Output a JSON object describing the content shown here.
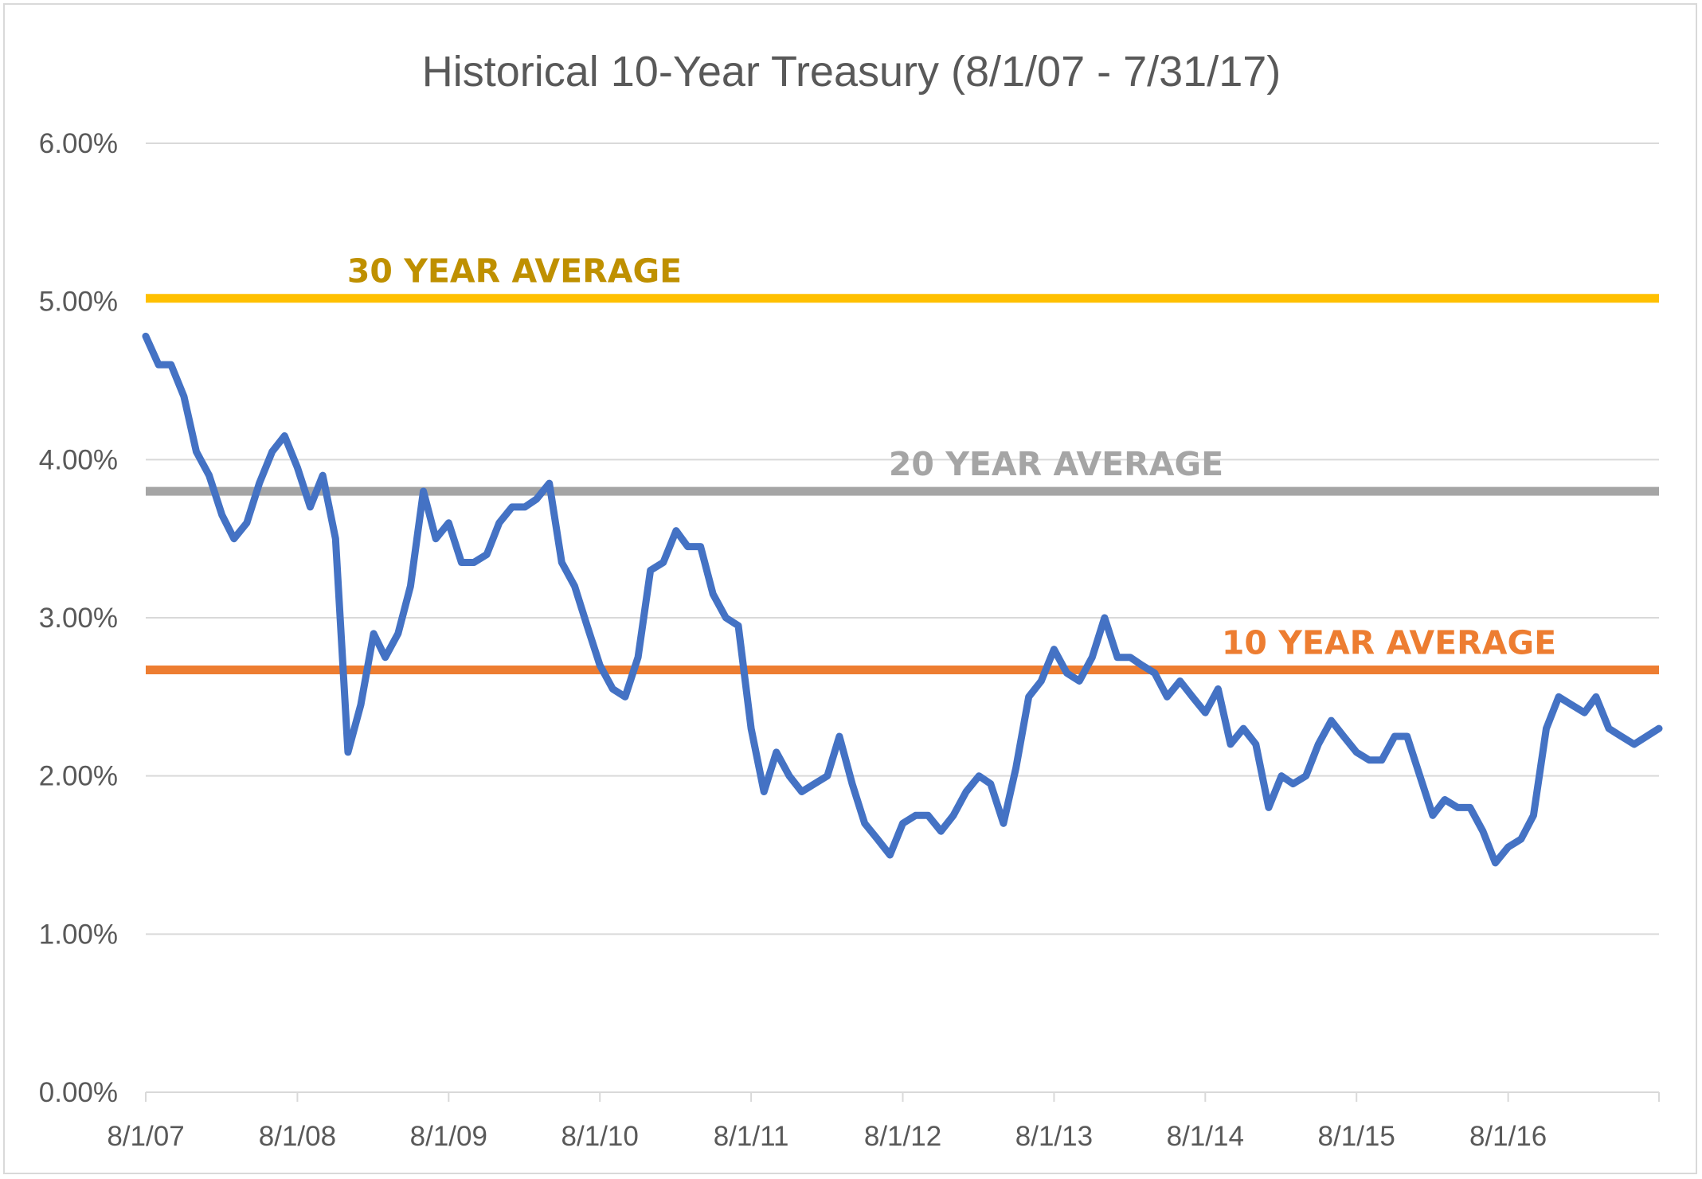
{
  "chart_data": {
    "type": "line",
    "title": "Historical 10-Year Treasury (8/1/07 - 7/31/17)",
    "xlabel": "",
    "ylabel": "",
    "x_ticks": [
      "8/1/07",
      "8/1/08",
      "8/1/09",
      "8/1/10",
      "8/1/11",
      "8/1/12",
      "8/1/13",
      "8/1/14",
      "8/1/15",
      "8/1/16"
    ],
    "y_ticks": [
      "0.00%",
      "1.00%",
      "2.00%",
      "3.00%",
      "4.00%",
      "5.00%",
      "6.00%"
    ],
    "ylim": [
      0,
      6
    ],
    "xlim": [
      "8/1/07",
      "7/31/17"
    ],
    "grid": "horizontal",
    "series": [
      {
        "color": "#4472c4",
        "points": [
          [
            "8/1/07",
            4.78
          ],
          [
            "9/1/07",
            4.6
          ],
          [
            "10/1/07",
            4.6
          ],
          [
            "11/1/07",
            4.4
          ],
          [
            "12/1/07",
            4.05
          ],
          [
            "1/1/08",
            3.9
          ],
          [
            "2/1/08",
            3.65
          ],
          [
            "3/1/08",
            3.5
          ],
          [
            "4/1/08",
            3.6
          ],
          [
            "5/1/08",
            3.85
          ],
          [
            "6/1/08",
            4.05
          ],
          [
            "7/1/08",
            4.15
          ],
          [
            "8/1/08",
            3.95
          ],
          [
            "9/1/08",
            3.7
          ],
          [
            "10/1/08",
            3.9
          ],
          [
            "11/1/08",
            3.5
          ],
          [
            "12/1/08",
            2.15
          ],
          [
            "1/1/09",
            2.45
          ],
          [
            "2/1/09",
            2.9
          ],
          [
            "3/1/09",
            2.75
          ],
          [
            "4/1/09",
            2.9
          ],
          [
            "5/1/09",
            3.2
          ],
          [
            "6/1/09",
            3.8
          ],
          [
            "7/1/09",
            3.5
          ],
          [
            "8/1/09",
            3.6
          ],
          [
            "9/1/09",
            3.35
          ],
          [
            "10/1/09",
            3.35
          ],
          [
            "11/1/09",
            3.4
          ],
          [
            "12/1/09",
            3.6
          ],
          [
            "1/1/10",
            3.7
          ],
          [
            "2/1/10",
            3.7
          ],
          [
            "3/1/10",
            3.75
          ],
          [
            "4/1/10",
            3.85
          ],
          [
            "5/1/10",
            3.35
          ],
          [
            "6/1/10",
            3.2
          ],
          [
            "7/1/10",
            2.95
          ],
          [
            "8/1/10",
            2.7
          ],
          [
            "9/1/10",
            2.55
          ],
          [
            "10/1/10",
            2.5
          ],
          [
            "11/1/10",
            2.75
          ],
          [
            "12/1/10",
            3.3
          ],
          [
            "1/1/11",
            3.35
          ],
          [
            "2/1/11",
            3.55
          ],
          [
            "3/1/11",
            3.45
          ],
          [
            "4/1/11",
            3.45
          ],
          [
            "5/1/11",
            3.15
          ],
          [
            "6/1/11",
            3.0
          ],
          [
            "7/1/11",
            2.95
          ],
          [
            "8/1/11",
            2.3
          ],
          [
            "9/1/11",
            1.9
          ],
          [
            "10/1/11",
            2.15
          ],
          [
            "11/1/11",
            2.0
          ],
          [
            "12/1/11",
            1.9
          ],
          [
            "1/1/12",
            1.95
          ],
          [
            "2/1/12",
            2.0
          ],
          [
            "3/1/12",
            2.25
          ],
          [
            "4/1/12",
            1.95
          ],
          [
            "5/1/12",
            1.7
          ],
          [
            "6/1/12",
            1.6
          ],
          [
            "7/1/12",
            1.5
          ],
          [
            "8/1/12",
            1.7
          ],
          [
            "9/1/12",
            1.75
          ],
          [
            "10/1/12",
            1.75
          ],
          [
            "11/1/12",
            1.65
          ],
          [
            "12/1/12",
            1.75
          ],
          [
            "1/1/13",
            1.9
          ],
          [
            "2/1/13",
            2.0
          ],
          [
            "3/1/13",
            1.95
          ],
          [
            "4/1/13",
            1.7
          ],
          [
            "5/1/13",
            2.05
          ],
          [
            "6/1/13",
            2.5
          ],
          [
            "7/1/13",
            2.6
          ],
          [
            "8/1/13",
            2.8
          ],
          [
            "9/1/13",
            2.65
          ],
          [
            "10/1/13",
            2.6
          ],
          [
            "11/1/13",
            2.75
          ],
          [
            "12/1/13",
            3.0
          ],
          [
            "1/1/14",
            2.75
          ],
          [
            "2/1/14",
            2.75
          ],
          [
            "3/1/14",
            2.7
          ],
          [
            "4/1/14",
            2.65
          ],
          [
            "5/1/14",
            2.5
          ],
          [
            "6/1/14",
            2.6
          ],
          [
            "7/1/14",
            2.5
          ],
          [
            "8/1/14",
            2.4
          ],
          [
            "9/1/14",
            2.55
          ],
          [
            "10/1/14",
            2.2
          ],
          [
            "11/1/14",
            2.3
          ],
          [
            "12/1/14",
            2.2
          ],
          [
            "1/1/15",
            1.8
          ],
          [
            "2/1/15",
            2.0
          ],
          [
            "3/1/15",
            1.95
          ],
          [
            "4/1/15",
            2.0
          ],
          [
            "5/1/15",
            2.2
          ],
          [
            "6/1/15",
            2.35
          ],
          [
            "7/1/15",
            2.25
          ],
          [
            "8/1/15",
            2.15
          ],
          [
            "9/1/15",
            2.1
          ],
          [
            "10/1/15",
            2.1
          ],
          [
            "11/1/15",
            2.25
          ],
          [
            "12/1/15",
            2.25
          ],
          [
            "1/1/16",
            2.0
          ],
          [
            "2/1/16",
            1.75
          ],
          [
            "3/1/16",
            1.85
          ],
          [
            "4/1/16",
            1.8
          ],
          [
            "5/1/16",
            1.8
          ],
          [
            "6/1/16",
            1.65
          ],
          [
            "7/1/16",
            1.45
          ],
          [
            "8/1/16",
            1.55
          ],
          [
            "9/1/16",
            1.6
          ],
          [
            "10/1/16",
            1.75
          ],
          [
            "11/1/16",
            2.3
          ],
          [
            "12/1/16",
            2.5
          ],
          [
            "1/1/17",
            2.45
          ],
          [
            "2/1/17",
            2.4
          ],
          [
            "3/1/17",
            2.5
          ],
          [
            "4/1/17",
            2.3
          ],
          [
            "5/1/17",
            2.25
          ],
          [
            "6/1/17",
            2.2
          ],
          [
            "7/31/17",
            2.3
          ]
        ]
      }
    ],
    "reference_lines": [
      {
        "label": "30 YEAR AVERAGE",
        "value": 5.02,
        "color": "#ffc000",
        "text_color": "#bf9000"
      },
      {
        "label": "20 YEAR AVERAGE",
        "value": 3.8,
        "color": "#a5a5a5",
        "text_color": "#a5a5a5"
      },
      {
        "label": "10 YEAR AVERAGE",
        "value": 2.67,
        "color": "#ed7d31",
        "text_color": "#ed7d31"
      }
    ]
  }
}
